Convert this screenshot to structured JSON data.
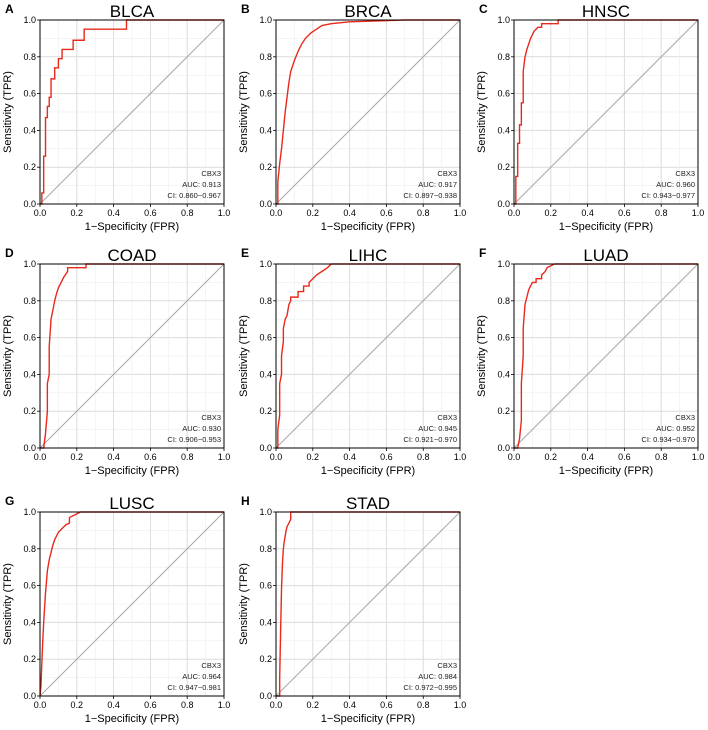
{
  "colors": {
    "roc_line": "#e8291c",
    "diagonal": "#a8a8a8"
  },
  "chart_data": [
    {
      "type": "line",
      "letter": "A",
      "title": "BLCA",
      "xlabel": "1−Specificity (FPR)",
      "ylabel": "Sensitivity (TPR)",
      "xlim": [
        0,
        1
      ],
      "ylim": [
        0,
        1
      ],
      "xticks": [
        "0.0",
        "0.2",
        "0.4",
        "0.6",
        "0.8",
        "1.0"
      ],
      "yticks": [
        "0.0",
        "0.2",
        "0.4",
        "0.6",
        "0.8",
        "1.0"
      ],
      "gene": "CBX3",
      "auc": "AUC: 0.913",
      "ci": "CI: 0.860−0.967",
      "series": [
        {
          "name": "ROC",
          "x": [
            0,
            0.01,
            0.01,
            0.02,
            0.02,
            0.03,
            0.03,
            0.04,
            0.04,
            0.05,
            0.05,
            0.06,
            0.06,
            0.08,
            0.08,
            0.1,
            0.1,
            0.12,
            0.12,
            0.18,
            0.18,
            0.24,
            0.24,
            0.47,
            0.47,
            1.0
          ],
          "y": [
            0,
            0,
            0.06,
            0.06,
            0.26,
            0.26,
            0.47,
            0.47,
            0.53,
            0.53,
            0.58,
            0.58,
            0.68,
            0.68,
            0.74,
            0.74,
            0.79,
            0.79,
            0.84,
            0.84,
            0.89,
            0.89,
            0.95,
            0.95,
            1.0,
            1.0
          ]
        }
      ]
    },
    {
      "type": "line",
      "letter": "B",
      "title": "BRCA",
      "xlabel": "1−Specificity (FPR)",
      "ylabel": "Sensitivity (TPR)",
      "xlim": [
        0,
        1
      ],
      "ylim": [
        0,
        1
      ],
      "xticks": [
        "0.0",
        "0.2",
        "0.4",
        "0.6",
        "0.8",
        "1.0"
      ],
      "yticks": [
        "0.0",
        "0.2",
        "0.4",
        "0.6",
        "0.8",
        "1.0"
      ],
      "gene": "CBX3",
      "auc": "AUC: 0.917",
      "ci": "CI: 0.897−0.938",
      "series": [
        {
          "name": "ROC",
          "x": [
            0,
            0.01,
            0.01,
            0.02,
            0.03,
            0.04,
            0.05,
            0.06,
            0.07,
            0.08,
            0.1,
            0.12,
            0.14,
            0.16,
            0.19,
            0.22,
            0.25,
            0.3,
            0.4,
            0.55,
            0.7,
            1.0
          ],
          "y": [
            0,
            0,
            0.12,
            0.22,
            0.3,
            0.4,
            0.5,
            0.58,
            0.66,
            0.72,
            0.78,
            0.83,
            0.87,
            0.9,
            0.93,
            0.95,
            0.97,
            0.98,
            0.99,
            0.995,
            1.0,
            1.0
          ]
        }
      ]
    },
    {
      "type": "line",
      "letter": "C",
      "title": "HNSC",
      "xlabel": "1−Specificity (FPR)",
      "ylabel": "Sensitivity (TPR)",
      "xlim": [
        0,
        1
      ],
      "ylim": [
        0,
        1
      ],
      "xticks": [
        "0.0",
        "0.2",
        "0.4",
        "0.6",
        "0.8",
        "1.0"
      ],
      "yticks": [
        "0.0",
        "0.2",
        "0.4",
        "0.6",
        "0.8",
        "1.0"
      ],
      "gene": "CBX3",
      "auc": "AUC: 0.960",
      "ci": "CI: 0.943−0.977",
      "series": [
        {
          "name": "ROC",
          "x": [
            0,
            0.01,
            0.01,
            0.02,
            0.02,
            0.03,
            0.03,
            0.04,
            0.04,
            0.05,
            0.05,
            0.06,
            0.07,
            0.08,
            0.09,
            0.1,
            0.11,
            0.13,
            0.15,
            0.15,
            0.24,
            0.24,
            1.0
          ],
          "y": [
            0,
            0,
            0.15,
            0.15,
            0.33,
            0.33,
            0.43,
            0.43,
            0.55,
            0.55,
            0.72,
            0.8,
            0.84,
            0.87,
            0.9,
            0.92,
            0.94,
            0.96,
            0.96,
            0.98,
            0.98,
            1.0,
            1.0
          ]
        }
      ]
    },
    {
      "type": "line",
      "letter": "D",
      "title": "COAD",
      "xlabel": "1−Specificity (FPR)",
      "ylabel": "Sensitivity (TPR)",
      "xlim": [
        0,
        1
      ],
      "ylim": [
        0,
        1
      ],
      "xticks": [
        "0.0",
        "0.2",
        "0.4",
        "0.6",
        "0.8",
        "1.0"
      ],
      "yticks": [
        "0.0",
        "0.2",
        "0.4",
        "0.6",
        "0.8",
        "1.0"
      ],
      "gene": "CBX3",
      "auc": "AUC: 0.930",
      "ci": "CI: 0.906−0.953",
      "series": [
        {
          "name": "ROC",
          "x": [
            0,
            0.02,
            0.03,
            0.04,
            0.04,
            0.05,
            0.05,
            0.06,
            0.07,
            0.08,
            0.09,
            0.1,
            0.11,
            0.12,
            0.13,
            0.15,
            0.15,
            0.25,
            0.25,
            1.0
          ],
          "y": [
            0,
            0,
            0.08,
            0.2,
            0.35,
            0.4,
            0.55,
            0.7,
            0.75,
            0.8,
            0.84,
            0.87,
            0.89,
            0.91,
            0.93,
            0.96,
            0.98,
            0.98,
            1.0,
            1.0
          ]
        }
      ]
    },
    {
      "type": "line",
      "letter": "E",
      "title": "LIHC",
      "xlabel": "1−Specificity (FPR)",
      "ylabel": "Sensitivity (TPR)",
      "xlim": [
        0,
        1
      ],
      "ylim": [
        0,
        1
      ],
      "xticks": [
        "0.0",
        "0.2",
        "0.4",
        "0.6",
        "0.8",
        "1.0"
      ],
      "yticks": [
        "0.0",
        "0.2",
        "0.4",
        "0.6",
        "0.8",
        "1.0"
      ],
      "gene": "CBX3",
      "auc": "AUC: 0.945",
      "ci": "CI: 0.921−0.970",
      "series": [
        {
          "name": "ROC",
          "x": [
            0,
            0.01,
            0.01,
            0.02,
            0.02,
            0.03,
            0.03,
            0.04,
            0.04,
            0.05,
            0.06,
            0.07,
            0.08,
            0.08,
            0.12,
            0.12,
            0.15,
            0.15,
            0.18,
            0.18,
            0.2,
            0.22,
            0.25,
            0.28,
            0.3,
            1.0
          ],
          "y": [
            0,
            0,
            0.1,
            0.18,
            0.35,
            0.4,
            0.5,
            0.58,
            0.65,
            0.7,
            0.72,
            0.78,
            0.8,
            0.82,
            0.82,
            0.85,
            0.85,
            0.88,
            0.88,
            0.9,
            0.92,
            0.94,
            0.96,
            0.98,
            1.0,
            1.0
          ]
        }
      ]
    },
    {
      "type": "line",
      "letter": "F",
      "title": "LUAD",
      "xlabel": "1−Specificity (FPR)",
      "ylabel": "Sensitivity (TPR)",
      "xlim": [
        0,
        1
      ],
      "ylim": [
        0,
        1
      ],
      "xticks": [
        "0.0",
        "0.2",
        "0.4",
        "0.6",
        "0.8",
        "1.0"
      ],
      "yticks": [
        "0.0",
        "0.2",
        "0.4",
        "0.6",
        "0.8",
        "1.0"
      ],
      "gene": "CBX3",
      "auc": "AUC: 0.952",
      "ci": "CI: 0.934−0.970",
      "series": [
        {
          "name": "ROC",
          "x": [
            0,
            0.02,
            0.03,
            0.04,
            0.04,
            0.05,
            0.05,
            0.06,
            0.07,
            0.08,
            0.09,
            0.1,
            0.12,
            0.12,
            0.15,
            0.15,
            0.17,
            0.18,
            0.2,
            0.22,
            0.25,
            1.0
          ],
          "y": [
            0,
            0,
            0.05,
            0.15,
            0.35,
            0.5,
            0.65,
            0.78,
            0.82,
            0.86,
            0.88,
            0.9,
            0.9,
            0.92,
            0.92,
            0.94,
            0.96,
            0.98,
            0.99,
            1.0,
            1.0,
            1.0
          ]
        }
      ]
    },
    {
      "type": "line",
      "letter": "G",
      "title": "LUSC",
      "xlabel": "1−Specificity (FPR)",
      "ylabel": "Sensitivity (TPR)",
      "xlim": [
        0,
        1
      ],
      "ylim": [
        0,
        1
      ],
      "xticks": [
        "0.0",
        "0.2",
        "0.4",
        "0.6",
        "0.8",
        "1.0"
      ],
      "yticks": [
        "0.0",
        "0.2",
        "0.4",
        "0.6",
        "0.8",
        "1.0"
      ],
      "gene": "CBX3",
      "auc": "AUC: 0.964",
      "ci": "CI: 0.947−0.981",
      "series": [
        {
          "name": "ROC",
          "x": [
            0,
            0.005,
            0.01,
            0.015,
            0.02,
            0.025,
            0.03,
            0.035,
            0.04,
            0.05,
            0.06,
            0.07,
            0.08,
            0.09,
            0.1,
            0.12,
            0.14,
            0.16,
            0.16,
            0.2,
            0.22,
            1.0
          ],
          "y": [
            0,
            0.05,
            0.18,
            0.3,
            0.4,
            0.48,
            0.56,
            0.62,
            0.68,
            0.74,
            0.78,
            0.82,
            0.85,
            0.87,
            0.89,
            0.91,
            0.93,
            0.94,
            0.97,
            0.99,
            1.0,
            1.0
          ]
        }
      ]
    },
    {
      "type": "line",
      "letter": "H",
      "title": "STAD",
      "xlabel": "1−Specificity (FPR)",
      "ylabel": "Sensitivity (TPR)",
      "xlim": [
        0,
        1
      ],
      "ylim": [
        0,
        1
      ],
      "xticks": [
        "0.0",
        "0.2",
        "0.4",
        "0.6",
        "0.8",
        "1.0"
      ],
      "yticks": [
        "0.0",
        "0.2",
        "0.4",
        "0.6",
        "0.8",
        "1.0"
      ],
      "gene": "CBX3",
      "auc": "AUC: 0.984",
      "ci": "CI: 0.972−0.995",
      "series": [
        {
          "name": "ROC",
          "x": [
            0,
            0.02,
            0.02,
            0.025,
            0.03,
            0.035,
            0.04,
            0.045,
            0.05,
            0.055,
            0.06,
            0.07,
            0.08,
            0.08,
            1.0
          ],
          "y": [
            0,
            0,
            0.1,
            0.35,
            0.58,
            0.72,
            0.8,
            0.84,
            0.87,
            0.9,
            0.92,
            0.94,
            0.96,
            1.0,
            1.0
          ]
        }
      ]
    }
  ]
}
